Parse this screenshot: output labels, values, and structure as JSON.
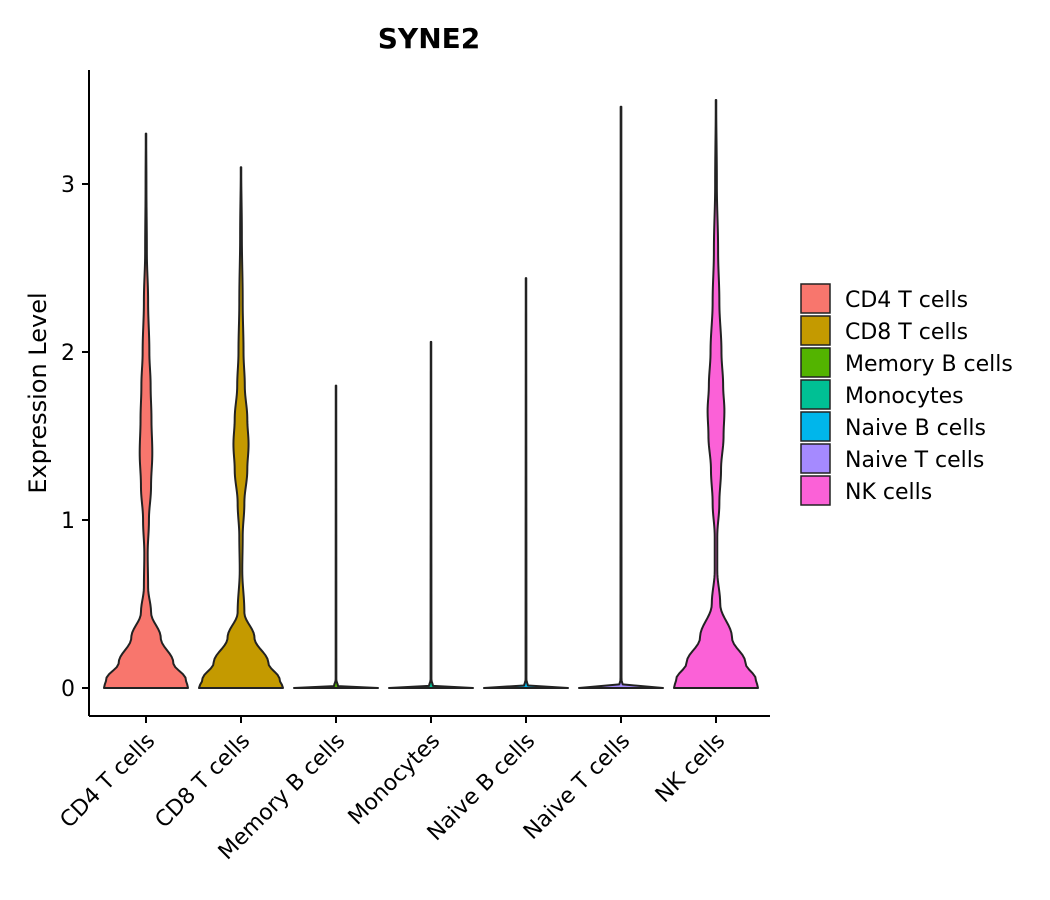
{
  "chart_data": {
    "type": "violin",
    "title": "SYNE2",
    "xlabel": "",
    "ylabel": "Expression Level",
    "ylim": [
      -0.17,
      3.7
    ],
    "yticks": [
      0,
      1,
      2,
      3
    ],
    "categories": [
      "CD4 T cells",
      "CD8 T cells",
      "Memory B cells",
      "Monocytes",
      "Naive B cells",
      "Naive T cells",
      "NK cells"
    ],
    "series": [
      {
        "name": "CD4 T cells",
        "color": "#F8766D",
        "max": 3.3,
        "profile": [
          [
            0,
            1.0
          ],
          [
            0.05,
            0.95
          ],
          [
            0.15,
            0.65
          ],
          [
            0.3,
            0.35
          ],
          [
            0.45,
            0.12
          ],
          [
            0.6,
            0.05
          ],
          [
            0.8,
            0.04
          ],
          [
            1.0,
            0.07
          ],
          [
            1.2,
            0.12
          ],
          [
            1.4,
            0.15
          ],
          [
            1.6,
            0.13
          ],
          [
            1.8,
            0.11
          ],
          [
            2.0,
            0.08
          ],
          [
            2.3,
            0.05
          ],
          [
            2.6,
            0.02
          ],
          [
            3.0,
            0.01
          ],
          [
            3.3,
            0.005
          ]
        ]
      },
      {
        "name": "CD8 T cells",
        "color": "#C49A00",
        "max": 3.1,
        "profile": [
          [
            0,
            1.0
          ],
          [
            0.05,
            0.92
          ],
          [
            0.15,
            0.65
          ],
          [
            0.3,
            0.32
          ],
          [
            0.45,
            0.08
          ],
          [
            0.7,
            0.03
          ],
          [
            0.9,
            0.04
          ],
          [
            1.1,
            0.08
          ],
          [
            1.3,
            0.15
          ],
          [
            1.45,
            0.18
          ],
          [
            1.6,
            0.15
          ],
          [
            1.8,
            0.09
          ],
          [
            2.0,
            0.06
          ],
          [
            2.3,
            0.04
          ],
          [
            2.7,
            0.02
          ],
          [
            3.1,
            0.005
          ]
        ]
      },
      {
        "name": "Memory B cells",
        "color": "#53B400",
        "max": 1.8,
        "profile": [
          [
            0,
            1.0
          ],
          [
            0.008,
            0.05
          ],
          [
            0.05,
            0.008
          ],
          [
            1.8,
            0.006
          ]
        ]
      },
      {
        "name": "Monocytes",
        "color": "#00C094",
        "max": 2.06,
        "profile": [
          [
            0,
            1.0
          ],
          [
            0.008,
            0.05
          ],
          [
            0.05,
            0.01
          ],
          [
            2.06,
            0.006
          ]
        ]
      },
      {
        "name": "Naive B cells",
        "color": "#00B6EB",
        "max": 2.44,
        "profile": [
          [
            0,
            1.0
          ],
          [
            0.008,
            0.05
          ],
          [
            0.05,
            0.01
          ],
          [
            2.44,
            0.006
          ]
        ]
      },
      {
        "name": "Naive T cells",
        "color": "#A58AFF",
        "max": 3.46,
        "profile": [
          [
            0,
            1.0
          ],
          [
            0.008,
            0.05
          ],
          [
            0.05,
            0.012
          ],
          [
            3.46,
            0.008
          ]
        ]
      },
      {
        "name": "NK cells",
        "color": "#FB61D7",
        "max": 3.5,
        "profile": [
          [
            0,
            1.0
          ],
          [
            0.05,
            0.95
          ],
          [
            0.15,
            0.7
          ],
          [
            0.3,
            0.38
          ],
          [
            0.5,
            0.1
          ],
          [
            0.7,
            0.03
          ],
          [
            0.9,
            0.03
          ],
          [
            1.1,
            0.08
          ],
          [
            1.3,
            0.12
          ],
          [
            1.5,
            0.18
          ],
          [
            1.65,
            0.2
          ],
          [
            1.8,
            0.17
          ],
          [
            2.0,
            0.13
          ],
          [
            2.3,
            0.08
          ],
          [
            2.6,
            0.05
          ],
          [
            3.0,
            0.02
          ],
          [
            3.5,
            0.005
          ]
        ]
      }
    ],
    "legend_position": "right"
  }
}
